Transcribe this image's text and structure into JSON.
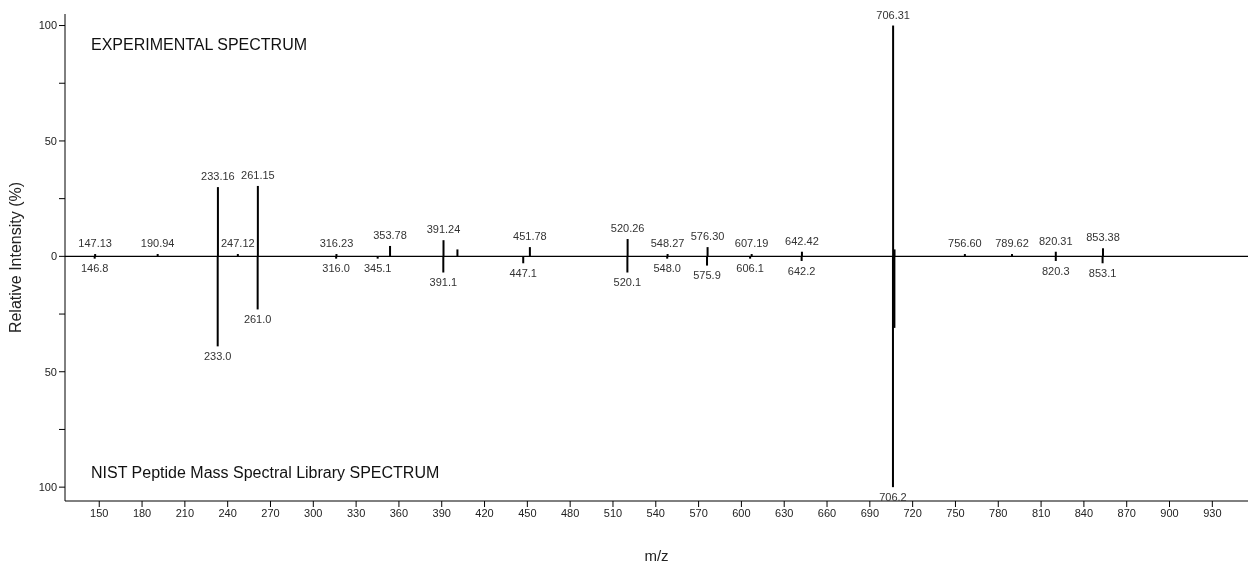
{
  "chart_data": {
    "type": "bar",
    "xlabel": "m/z",
    "ylabel": "Relative Intensity (%)",
    "annotations": [
      "EXPERIMENTAL SPECTRUM",
      "NIST Peptide Mass Spectral Library SPECTRUM",
      {
        "text": "147.13",
        "x": 147.13,
        "y": 1
      },
      {
        "text": "190.94",
        "x": 190.94,
        "y": 1
      },
      {
        "text": "233.16",
        "x": 233.16,
        "y": 30
      },
      {
        "text": "247.12",
        "x": 247.12,
        "y": 1
      },
      {
        "text": "261.15",
        "x": 261.15,
        "y": 30.5
      },
      {
        "text": "316.23",
        "x": 316.23,
        "y": 1
      },
      {
        "text": "353.78",
        "x": 353.78,
        "y": 4.5
      },
      {
        "text": "391.24",
        "x": 391.24,
        "y": 7
      },
      {
        "text": "451.78",
        "x": 451.78,
        "y": 4
      },
      {
        "text": "520.26",
        "x": 520.26,
        "y": 7.5
      },
      {
        "text": "548.27",
        "x": 548.27,
        "y": 1
      },
      {
        "text": "576.30",
        "x": 576.3,
        "y": 4
      },
      {
        "text": "607.19",
        "x": 607.19,
        "y": 1
      },
      {
        "text": "642.42",
        "x": 642.42,
        "y": 2
      },
      {
        "text": "706.31",
        "x": 706.31,
        "y": 100
      },
      {
        "text": "756.60",
        "x": 756.6,
        "y": 1
      },
      {
        "text": "789.62",
        "x": 789.62,
        "y": 1
      },
      {
        "text": "820.31",
        "x": 820.31,
        "y": 2
      },
      {
        "text": "853.38",
        "x": 853.38,
        "y": 3.5
      },
      {
        "text": "146.8",
        "x": 146.8,
        "y": -1
      },
      {
        "text": "233.0",
        "x": 233.0,
        "y": -39
      },
      {
        "text": "261.0",
        "x": 261.0,
        "y": -23
      },
      {
        "text": "316.0",
        "x": 316.0,
        "y": -1
      },
      {
        "text": "345.1",
        "x": 345.1,
        "y": -1
      },
      {
        "text": "391.1",
        "x": 391.1,
        "y": -7
      },
      {
        "text": "447.1",
        "x": 447.1,
        "y": -3
      },
      {
        "text": "520.1",
        "x": 520.1,
        "y": -7
      },
      {
        "text": "548.0",
        "x": 548.0,
        "y": -1
      },
      {
        "text": "575.9",
        "x": 575.9,
        "y": -4
      },
      {
        "text": "606.1",
        "x": 606.1,
        "y": -1
      },
      {
        "text": "642.2",
        "x": 642.2,
        "y": -2
      },
      {
        "text": "706.2",
        "x": 706.2,
        "y": -100
      },
      {
        "text": "820.3",
        "x": 820.3,
        "y": -2
      },
      {
        "text": "853.1",
        "x": 853.1,
        "y": -3
      }
    ],
    "xlim": [
      126,
      955
    ],
    "xticks": [
      150,
      180,
      210,
      240,
      270,
      300,
      330,
      360,
      390,
      420,
      450,
      480,
      510,
      540,
      570,
      600,
      630,
      660,
      690,
      720,
      750,
      780,
      810,
      840,
      870,
      900,
      930
    ],
    "ylim": [
      -106,
      105
    ],
    "yticks": [
      {
        "value": 100,
        "label": "100"
      },
      {
        "value": 75,
        "label": null
      },
      50,
      {
        "value": 25,
        "label": null
      },
      0,
      {
        "value": -25,
        "label": null
      },
      {
        "value": -50,
        "label": "50"
      },
      {
        "value": -75,
        "label": null
      },
      {
        "value": -100,
        "label": "100"
      }
    ],
    "ref_lines": [
      {
        "axis": "y",
        "value": 0,
        "label": null
      }
    ],
    "series": [
      {
        "color": "#000000",
        "x": [
          147.13,
          190.94,
          233.16,
          247.12,
          261.15,
          316.23,
          353.78,
          391.24,
          401,
          451.78,
          520.26,
          548.27,
          576.3,
          607.19,
          642.42,
          706.31,
          707.3,
          756.6,
          789.62,
          820.31,
          853.38
        ],
        "values": [
          1,
          1,
          30,
          1,
          30.5,
          1,
          4.5,
          7,
          3,
          4,
          7.5,
          1,
          4,
          1,
          2,
          100,
          3,
          1,
          1,
          2,
          3.5
        ]
      },
      {
        "color": "#000000",
        "x": [
          146.8,
          233.0,
          261.0,
          316.0,
          345.1,
          391.1,
          447.1,
          520.1,
          548.0,
          575.9,
          606.1,
          642.2,
          706.2,
          707.2,
          820.3,
          853.1
        ],
        "values": [
          -1,
          -39,
          -23,
          -1,
          -1,
          -7,
          -3,
          -7,
          -1,
          -4,
          -1,
          -2,
          -100,
          -31,
          -2,
          -3
        ]
      }
    ]
  }
}
